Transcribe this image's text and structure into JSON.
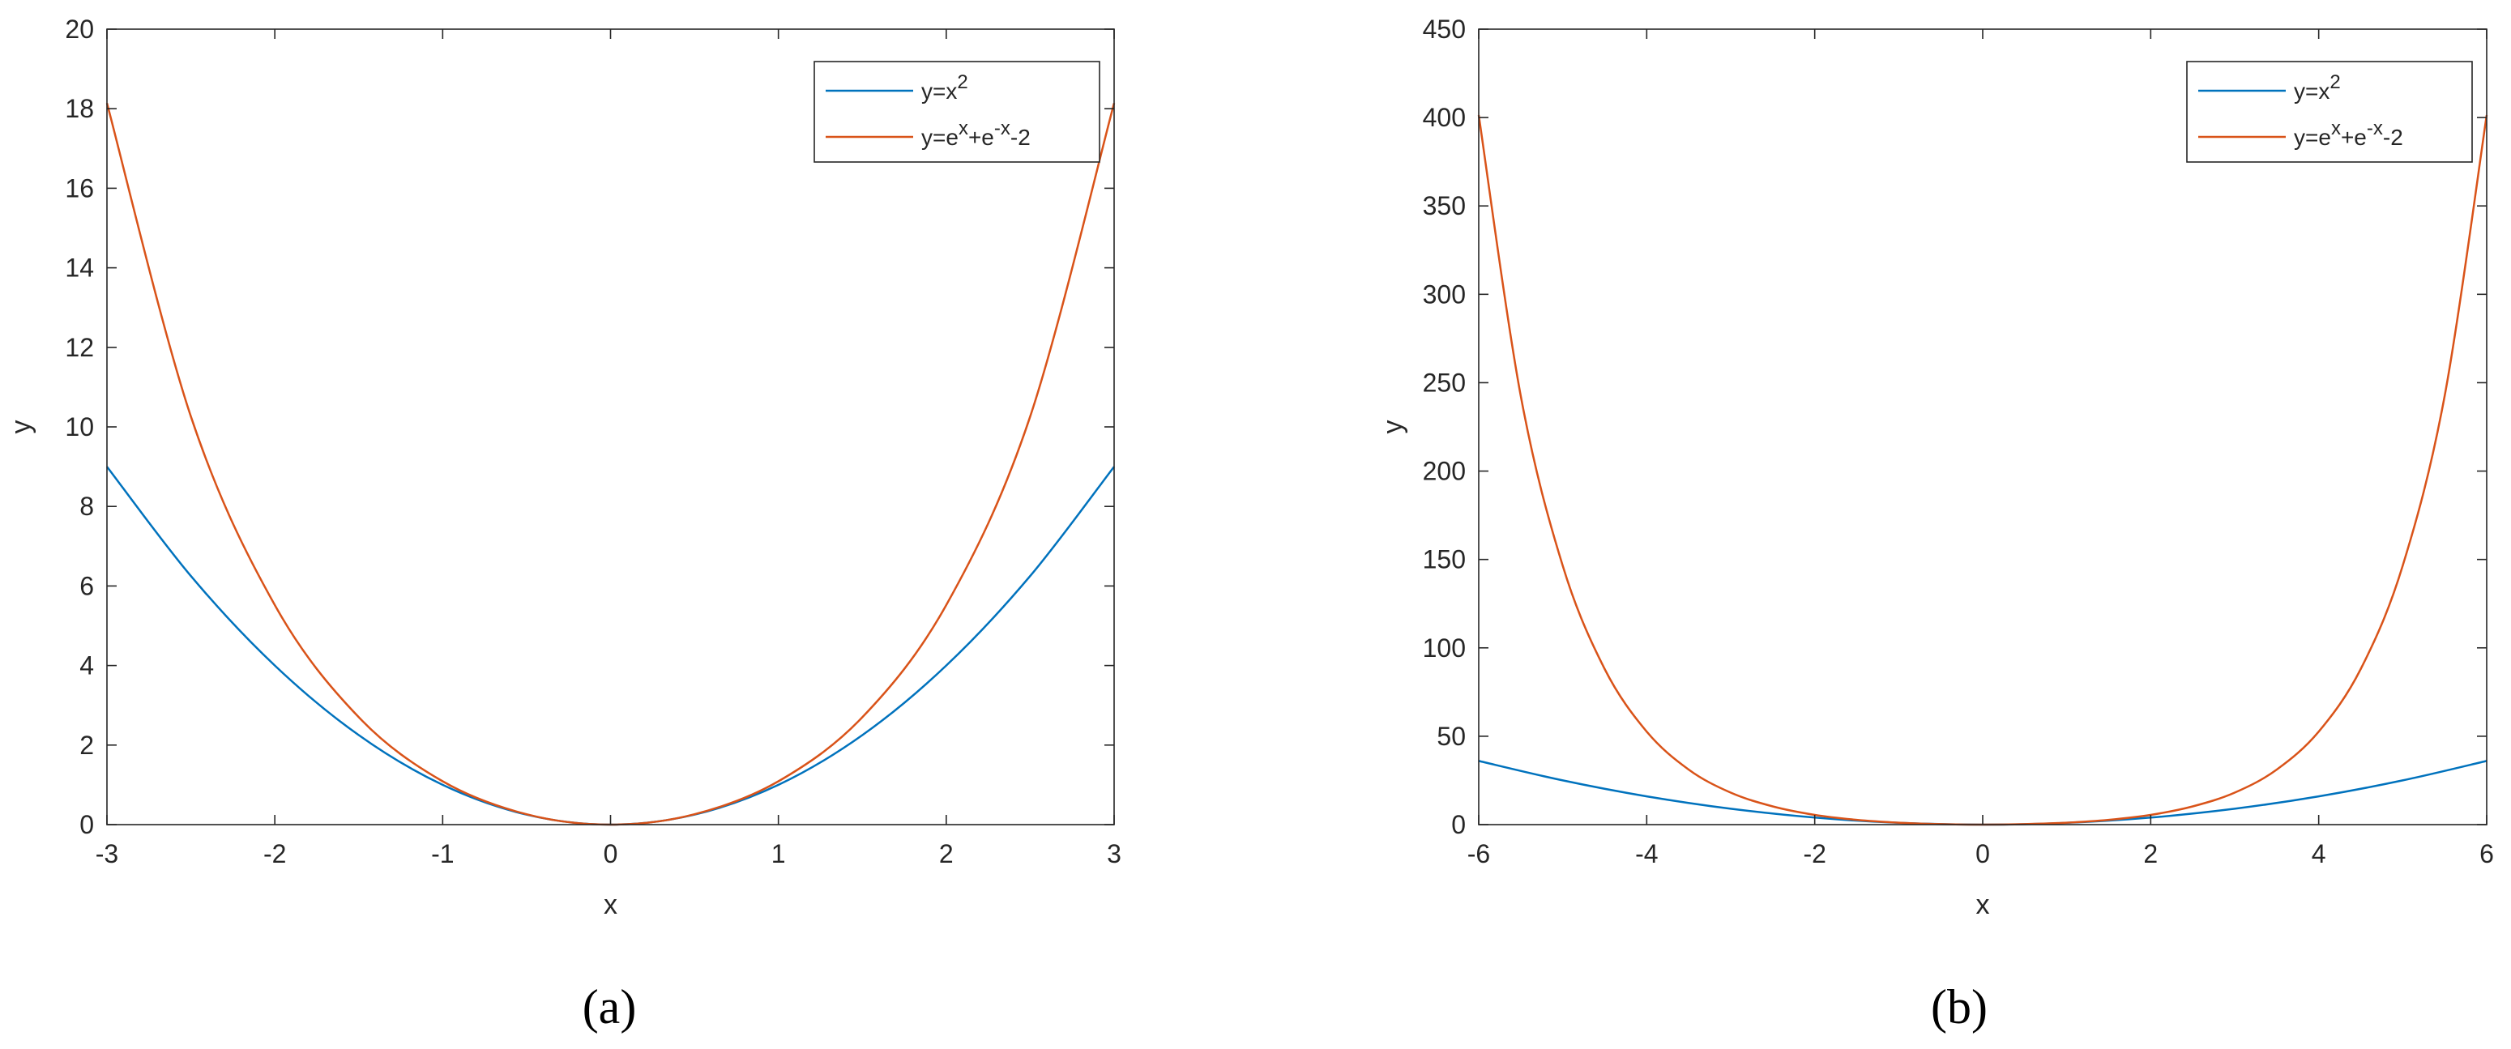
{
  "colors": {
    "series1": "#0072BD",
    "series2": "#D95319",
    "axis": "#262626",
    "background": "#ffffff"
  },
  "legend_placement": "top-right",
  "panels": [
    {
      "label": "(a)"
    },
    {
      "label": "(b)"
    }
  ],
  "chart_data": [
    {
      "type": "line",
      "title": "",
      "xlabel": "x",
      "ylabel": "y",
      "xlim": [
        -3,
        3
      ],
      "ylim": [
        0,
        20
      ],
      "xticks": [
        -3,
        -2,
        -1,
        0,
        1,
        2,
        3
      ],
      "yticks": [
        0,
        2,
        4,
        6,
        8,
        10,
        12,
        14,
        16,
        18,
        20
      ],
      "grid": false,
      "legend": "top-right",
      "series": [
        {
          "name": "y=x²",
          "x": [
            -3,
            -2.5,
            -2,
            -1.5,
            -1,
            -0.5,
            0,
            0.5,
            1,
            1.5,
            2,
            2.5,
            3
          ],
          "y": [
            9,
            6.25,
            4,
            2.25,
            1,
            0.25,
            0,
            0.25,
            1,
            2.25,
            4,
            6.25,
            9
          ]
        },
        {
          "name": "y=eˣ+e⁻ˣ-2",
          "x": [
            -3,
            -2.5,
            -2,
            -1.5,
            -1,
            -0.5,
            0,
            0.5,
            1,
            1.5,
            2,
            2.5,
            3
          ],
          "y": [
            18.14,
            10.26,
            5.52,
            2.7,
            1.09,
            0.26,
            0,
            0.26,
            1.09,
            2.7,
            5.52,
            10.26,
            18.14
          ]
        }
      ]
    },
    {
      "type": "line",
      "title": "",
      "xlabel": "x",
      "ylabel": "y",
      "xlim": [
        -6,
        6
      ],
      "ylim": [
        0,
        450
      ],
      "xticks": [
        -6,
        -4,
        -2,
        0,
        2,
        4,
        6
      ],
      "yticks": [
        0,
        50,
        100,
        150,
        200,
        250,
        300,
        350,
        400,
        450
      ],
      "grid": false,
      "legend": "top-right",
      "series": [
        {
          "name": "y=x²",
          "x": [
            -6,
            -5,
            -4,
            -3,
            -2,
            -1,
            0,
            1,
            2,
            3,
            4,
            5,
            6
          ],
          "y": [
            36,
            25,
            16,
            9,
            4,
            1,
            0,
            1,
            4,
            9,
            16,
            25,
            36
          ]
        },
        {
          "name": "y=eˣ+e⁻ˣ-2",
          "x": [
            -6,
            -5.5,
            -5,
            -4.5,
            -4,
            -3.5,
            -3,
            -2.5,
            -2,
            -1.5,
            -1,
            -0.5,
            0,
            0.5,
            1,
            1.5,
            2,
            2.5,
            3,
            3.5,
            4,
            4.5,
            5,
            5.5,
            6
          ],
          "y": [
            401.4,
            242.7,
            146.4,
            88.0,
            52.6,
            31.1,
            18.1,
            10.3,
            5.5,
            2.7,
            1.1,
            0.26,
            0,
            0.26,
            1.1,
            2.7,
            5.5,
            10.3,
            18.1,
            31.1,
            52.6,
            88.0,
            146.4,
            242.7,
            401.4
          ]
        }
      ]
    }
  ]
}
